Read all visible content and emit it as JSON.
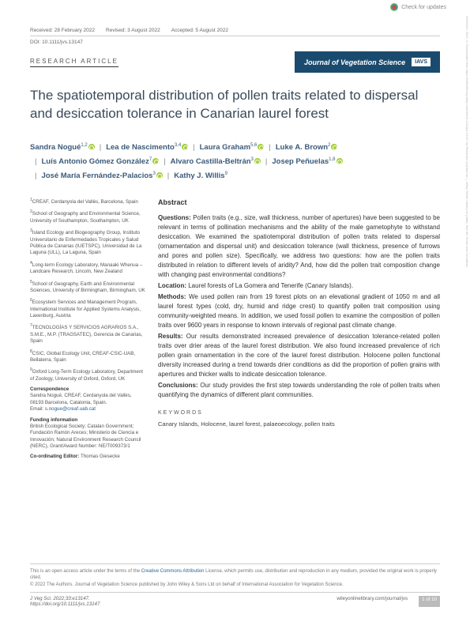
{
  "check_updates": "Check for updates",
  "meta": {
    "received": "Received: 28 February 2022",
    "revised": "Revised: 3 August 2022",
    "accepted": "Accepted: 5 August 2022"
  },
  "doi": "DOI: 10.1111/jvs.13147",
  "article_type": "RESEARCH ARTICLE",
  "journal": "Journal of Vegetation Science",
  "iavs": "IAVS",
  "title": "The spatiotemporal distribution of pollen traits related to dispersal and desiccation tolerance in Canarian laurel forest",
  "authors": [
    {
      "name": "Sandra Nogué",
      "sup": "1,2",
      "orcid": true
    },
    {
      "name": "Lea de Nascimento",
      "sup": "3,4",
      "orcid": true
    },
    {
      "name": "Laura Graham",
      "sup": "5,6",
      "orcid": true
    },
    {
      "name": "Luke A. Brown",
      "sup": "2",
      "orcid": true
    },
    {
      "name": "Luís Antonio Gómez González",
      "sup": "7",
      "orcid": true
    },
    {
      "name": "Alvaro Castilla-Beltrán",
      "sup": "3",
      "orcid": true
    },
    {
      "name": "Josep Peñuelas",
      "sup": "1,8",
      "orcid": true
    },
    {
      "name": "José María Fernández-Palacios",
      "sup": "3",
      "orcid": true
    },
    {
      "name": "Kathy J. Willis",
      "sup": "9",
      "orcid": false
    }
  ],
  "affiliations": [
    {
      "n": "1",
      "text": "CREAF, Cerdanyola del Vallès, Barcelona, Spain"
    },
    {
      "n": "2",
      "text": "School of Geography and Environmental Science, University of Southampton, Southampton, UK"
    },
    {
      "n": "3",
      "text": "Island Ecology and Biogeography Group, Instituto Universitario de Enfermedades Tropicales y Salud Pública de Canarias (IUETSPC), Universidad de La Laguna (ULL), La Laguna, Spain"
    },
    {
      "n": "4",
      "text": "Long-term Ecology Laboratory, Manaaki Whenua – Landcare Research, Lincoln, New Zealand"
    },
    {
      "n": "5",
      "text": "School of Geography, Earth and Environmental Sciences, University of Birmingham, Birmingham, UK"
    },
    {
      "n": "6",
      "text": "Ecosystem Services and Management Program, International Institute for Applied Systems Analysis, Laxenburg, Austria"
    },
    {
      "n": "7",
      "text": "TECNOLOGÍAS Y SERVICIOS AGRARIOS S.A., S.M.E., M.P. (TRAGSATEC), Gerencia de Canarias, Spain"
    },
    {
      "n": "8",
      "text": "CSIC, Global Ecology Unit, CREAF-CSIC-UAB, Bellaterra, Spain"
    },
    {
      "n": "9",
      "text": "Oxford Long-Term Ecology Laboratory, Department of Zoology, University of Oxford, Oxford, UK"
    }
  ],
  "correspondence_h": "Correspondence",
  "correspondence": "Sandra Nogué, CREAF, Cerdanyola del Vallès, 08193 Barcelona, Catalonia, Spain.",
  "email_label": "Email: ",
  "email": "s.nogue@creaf.uab.cat",
  "funding_h": "Funding information",
  "funding": "British Ecological Society; Catalan Government; Fundación Ramón Areces; Ministerio de Ciencia e Innovación; Natural Environment Research Council (NERC), Grant/Award Number: NE/T009373/1",
  "editor_h": "Co-ordinating Editor: ",
  "editor": "Thomas Giesecke",
  "abstract_h": "Abstract",
  "abstract": {
    "questions_l": "Questions: ",
    "questions": "Pollen traits (e.g., size, wall thickness, number of apertures) have been suggested to be relevant in terms of pollination mechanisms and the ability of the male gametophyte to withstand desiccation. We examined the spatiotemporal distribution of pollen traits related to dispersal (ornamentation and dispersal unit) and desiccation tolerance (wall thickness, presence of furrows and pores and pollen size). Specifically, we address two questions: how are the pollen traits distributed in relation to different levels of aridity? And, how did the pollen trait composition change with changing past environmental conditions?",
    "location_l": "Location: ",
    "location": "Laurel forests of La Gomera and Tenerife (Canary Islands).",
    "methods_l": "Methods: ",
    "methods": "We used pollen rain from 19 forest plots on an elevational gradient of 1050 m and all laurel forest types (cold, dry, humid and ridge crest) to quantify pollen trait composition using community-weighted means. In addition, we used fossil pollen to examine the composition of pollen traits over 9600 years in response to known intervals of regional past climate change.",
    "results_l": "Results: ",
    "results": "Our results demonstrated increased prevalence of desiccation tolerance-related pollen traits over drier areas of the laurel forest distribution. We also found increased prevalence of rich pollen grain ornamentation in the core of the laurel forest distribution. Holocene pollen functional diversity increased during a trend towards drier conditions as did the proportion of pollen grains with apertures and thicker walls to indicate desiccation tolerance.",
    "conclusions_l": "Conclusions: ",
    "conclusions": "Our study provides the first step towards understanding the role of pollen traits when quantifying the dynamics of different plant communities."
  },
  "keywords_h": "KEYWORDS",
  "keywords": "Canary Islands, Holocene, laurel forest, palaeoecology, pollen traits",
  "license1": "This is an open access article under the terms of the ",
  "license_link": "Creative Commons Attribution",
  "license2": " License, which permits use, distribution and reproduction in any medium, provided the original work is properly cited.",
  "copyright": "© 2022 The Authors. Journal of Vegetation Science published by John Wiley & Sons Ltd on behalf of International Association for Vegetation Science.",
  "footer": {
    "citation": "J Veg Sci. 2022;33:e13147.",
    "doi_url": "https://doi.org/10.1111/jvs.13147",
    "wiley": "wileyonlinelibrary.com/journal/jvs",
    "page": "1 of 10"
  }
}
